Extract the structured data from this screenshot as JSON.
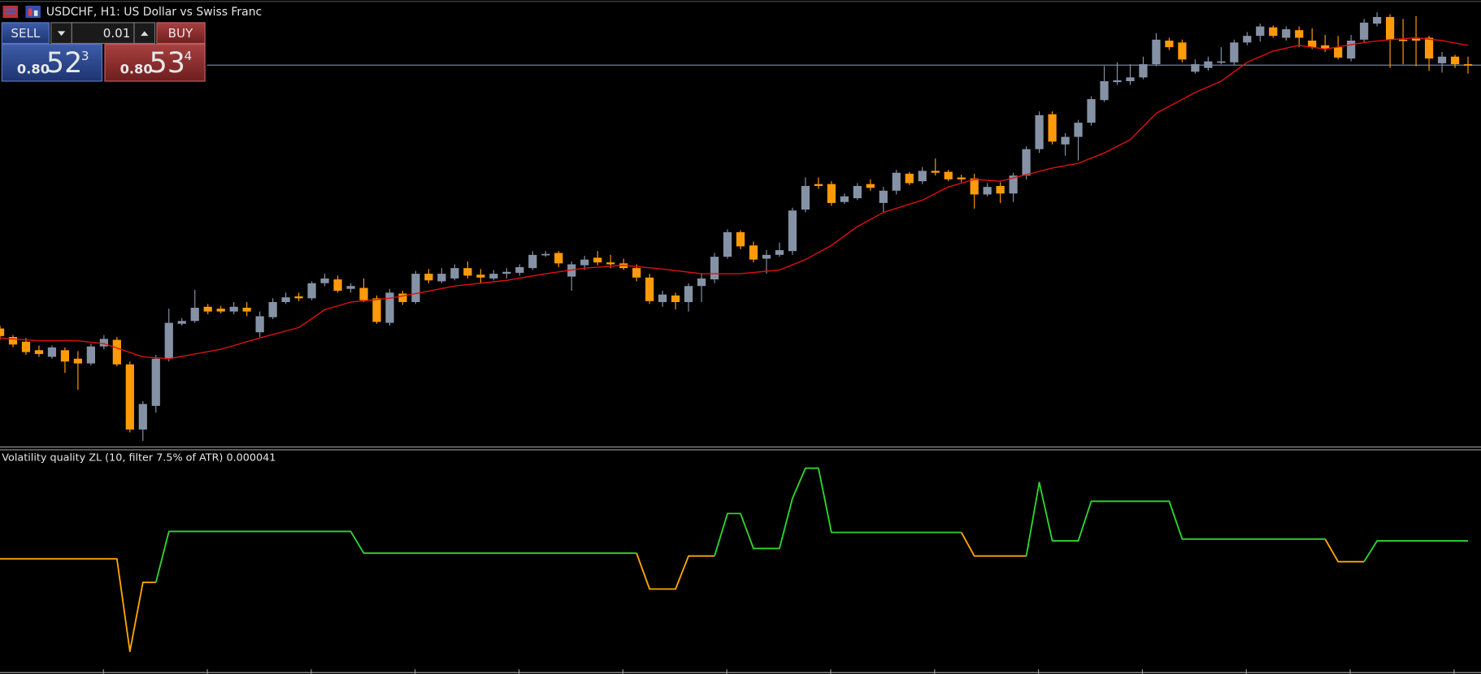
{
  "header": {
    "title": "USDCHF, H1:  US Dollar vs Swiss Franc"
  },
  "trade_panel": {
    "sell_label": "SELL",
    "buy_label": "BUY",
    "lot": "0.01",
    "sell_price": {
      "big": "0.80",
      "main": "52",
      "small": "3"
    },
    "buy_price": {
      "big": "0.80",
      "main": "53",
      "small": "4"
    }
  },
  "chart_data": [
    {
      "type": "candlestick",
      "xlim": [
        0,
        114
      ],
      "ylim": [
        0.79962,
        0.8062
      ],
      "up_color": "#8592a6",
      "down_color": "#ff9a0a",
      "bid_line_color": "#7f8fa8",
      "candles": {
        "open": [
          0.801328,
          0.801202,
          0.801132,
          0.801006,
          0.800908,
          0.801006,
          0.80088,
          0.80081,
          0.801062,
          0.80116,
          0.800796,
          0.79983,
          0.80018,
          0.80088,
          0.801398,
          0.80144,
          0.80165,
          0.801622,
          0.80158,
          0.801636,
          0.801272,
          0.801496,
          0.80172,
          0.801804,
          0.801776,
          0.802,
          0.802056,
          0.801916,
          0.80193,
          0.801776,
          0.801412,
          0.801846,
          0.80172,
          0.80214,
          0.802028,
          0.80207,
          0.802224,
          0.802126,
          0.80207,
          0.80214,
          0.802154,
          0.802224,
          0.80242,
          0.802448,
          0.802098,
          0.802266,
          0.802378,
          0.802308,
          0.802294,
          0.802224,
          0.802084,
          0.80172,
          0.801818,
          0.80172,
          0.801958,
          0.802056,
          0.802392,
          0.802756,
          0.80256,
          0.802364,
          0.80242,
          0.802476,
          0.803092,
          0.80347,
          0.80347,
          0.803204,
          0.80326,
          0.80347,
          0.80319,
          0.803372,
          0.803624,
          0.803512,
          0.803666,
          0.803652,
          0.803568,
          0.803554,
          0.803316,
          0.803442,
          0.80333,
          0.803596,
          0.803988,
          0.804506,
          0.804058,
          0.80417,
          0.80438,
          0.804716,
          0.804982,
          0.804996,
          0.805052,
          0.805248,
          0.805598,
          0.80557,
          0.805136,
          0.805192,
          0.805276,
          0.805276,
          0.80557,
          0.805668,
          0.805794,
          0.80564,
          0.805752,
          0.805598,
          0.805528,
          0.8055,
          0.805332,
          0.805612,
          0.80585,
          0.805948,
          0.805612,
          0.805626,
          0.80564,
          0.805262,
          0.80536,
          0.805248
        ],
        "high": [
          0.80137,
          0.80123,
          0.801188,
          0.801076,
          0.801076,
          0.801048,
          0.800992,
          0.801104,
          0.80123,
          0.801202,
          0.800838,
          0.80025,
          0.800936,
          0.801622,
          0.801482,
          0.801902,
          0.801692,
          0.801664,
          0.80172,
          0.80172,
          0.80158,
          0.801776,
          0.80186,
          0.80186,
          0.802028,
          0.80214,
          0.802112,
          0.802,
          0.80207,
          0.801818,
          0.801916,
          0.801888,
          0.802182,
          0.80221,
          0.802224,
          0.80228,
          0.802322,
          0.80221,
          0.802196,
          0.802224,
          0.80228,
          0.802476,
          0.802476,
          0.802476,
          0.802322,
          0.802406,
          0.802476,
          0.80242,
          0.802364,
          0.80228,
          0.80214,
          0.801888,
          0.80186,
          0.802,
          0.80214,
          0.802448,
          0.802798,
          0.802784,
          0.802616,
          0.80249,
          0.802602,
          0.80312,
          0.803568,
          0.803568,
          0.803512,
          0.80333,
          0.803484,
          0.80354,
          0.803428,
          0.80368,
          0.803652,
          0.803722,
          0.803848,
          0.80368,
          0.80361,
          0.803624,
          0.803484,
          0.803498,
          0.803638,
          0.80403,
          0.804548,
          0.804548,
          0.804226,
          0.804422,
          0.804772,
          0.80522,
          0.805276,
          0.805248,
          0.80536,
          0.80571,
          0.80564,
          0.805612,
          0.805318,
          0.80536,
          0.8055,
          0.805612,
          0.805724,
          0.80585,
          0.805822,
          0.805808,
          0.805808,
          0.80578,
          0.805682,
          0.805668,
          0.805682,
          0.80592,
          0.806018,
          0.80599,
          0.80592,
          0.805962,
          0.805668,
          0.80543,
          0.805388,
          0.80536
        ],
        "low": [
          0.80116,
          0.801048,
          0.800936,
          0.800908,
          0.80088,
          0.80067,
          0.800418,
          0.800782,
          0.80102,
          0.800768,
          0.799788,
          0.799662,
          0.800082,
          0.800838,
          0.80137,
          0.801412,
          0.801538,
          0.801552,
          0.801538,
          0.80151,
          0.801202,
          0.801468,
          0.801692,
          0.801734,
          0.801748,
          0.801958,
          0.80186,
          0.80186,
          0.80172,
          0.801398,
          0.80137,
          0.801678,
          0.801692,
          0.802,
          0.802,
          0.802042,
          0.80207,
          0.802,
          0.802042,
          0.80207,
          0.802112,
          0.802196,
          0.802392,
          0.802238,
          0.801888,
          0.802196,
          0.802266,
          0.802224,
          0.802196,
          0.802028,
          0.801692,
          0.80165,
          0.801608,
          0.80158,
          0.80172,
          0.802,
          0.802364,
          0.802504,
          0.802308,
          0.80214,
          0.802392,
          0.80242,
          0.80305,
          0.8034,
          0.803148,
          0.803176,
          0.803232,
          0.803372,
          0.80305,
          0.803316,
          0.803456,
          0.80347,
          0.803596,
          0.803512,
          0.803498,
          0.803106,
          0.803288,
          0.80319,
          0.803204,
          0.80354,
          0.803932,
          0.804058,
          0.80389,
          0.80382,
          0.804338,
          0.804688,
          0.80494,
          0.80494,
          0.805024,
          0.80522,
          0.805458,
          0.805276,
          0.805108,
          0.80515,
          0.805248,
          0.805234,
          0.805528,
          0.805584,
          0.80564,
          0.805598,
          0.8055,
          0.805472,
          0.80543,
          0.805318,
          0.80529,
          0.80557,
          0.805808,
          0.805192,
          0.805248,
          0.80522,
          0.80515,
          0.805122,
          0.805192,
          0.805108
        ],
        "close": [
          0.801216,
          0.80109,
          0.800978,
          0.80095,
          0.801048,
          0.800838,
          0.80081,
          0.801062,
          0.801174,
          0.800796,
          0.79983,
          0.800208,
          0.80088,
          0.801412,
          0.80144,
          0.801636,
          0.80158,
          0.80158,
          0.80165,
          0.80158,
          0.80151,
          0.80172,
          0.80179,
          0.801776,
          0.802,
          0.80207,
          0.801888,
          0.801958,
          0.801748,
          0.801426,
          0.80186,
          0.80172,
          0.80214,
          0.802042,
          0.80214,
          0.802224,
          0.802112,
          0.802084,
          0.80214,
          0.802168,
          0.802238,
          0.80242,
          0.802434,
          0.802294,
          0.80228,
          0.80235,
          0.802308,
          0.80228,
          0.802224,
          0.802084,
          0.801734,
          0.801832,
          0.80172,
          0.801958,
          0.80207,
          0.802392,
          0.802756,
          0.802546,
          0.80235,
          0.80242,
          0.80249,
          0.803078,
          0.803442,
          0.803442,
          0.80319,
          0.803288,
          0.803442,
          0.803414,
          0.803372,
          0.803638,
          0.803484,
          0.803666,
          0.803638,
          0.80354,
          0.80354,
          0.803316,
          0.803428,
          0.80333,
          0.803596,
          0.803988,
          0.804492,
          0.8041,
          0.80417,
          0.80438,
          0.80473,
          0.804996,
          0.80501,
          0.805052,
          0.805248,
          0.805612,
          0.8055,
          0.805318,
          0.805248,
          0.80529,
          0.80529,
          0.80557,
          0.805668,
          0.805808,
          0.805668,
          0.805766,
          0.80564,
          0.8055,
          0.805472,
          0.805346,
          0.805598,
          0.805864,
          0.805948,
          0.805612,
          0.805598,
          0.805598,
          0.805332,
          0.80536,
          0.805248,
          0.805234
        ]
      },
      "overlay": {
        "type": "line",
        "color": "#e01010",
        "x": [
          0,
          3,
          6,
          8,
          11,
          13,
          17,
          20,
          23,
          25,
          27,
          30,
          32,
          35,
          39,
          42,
          45,
          48,
          51,
          54,
          57,
          60,
          62,
          64,
          66,
          68,
          71,
          73,
          75,
          77,
          79,
          81,
          83,
          85,
          87,
          89,
          92,
          94,
          96,
          98,
          100,
          102,
          105,
          107,
          109,
          111,
          113
        ],
        "values": [
          0.801188,
          0.801146,
          0.801146,
          0.801104,
          0.800908,
          0.80088,
          0.80102,
          0.801188,
          0.801342,
          0.801608,
          0.80172,
          0.801776,
          0.801846,
          0.801958,
          0.802042,
          0.80214,
          0.802224,
          0.802266,
          0.80221,
          0.80214,
          0.80214,
          0.802196,
          0.80235,
          0.80256,
          0.80284,
          0.80305,
          0.803232,
          0.803428,
          0.80354,
          0.803512,
          0.80361,
          0.803708,
          0.803778,
          0.803932,
          0.804128,
          0.80452,
          0.804828,
          0.804996,
          0.805276,
          0.805444,
          0.805528,
          0.805472,
          0.80557,
          0.805612,
          0.80564,
          0.805598,
          0.805528
        ]
      }
    },
    {
      "type": "line",
      "title": "Volatility quality ZL (10, filter 7.5% of ATR) 0.000041",
      "xlim": [
        0,
        114
      ],
      "ylim": [
        -2.85e-05,
        8.85e-05
      ],
      "x": [
        0,
        9,
        10,
        11,
        12,
        13,
        27,
        28,
        49,
        50,
        52,
        53,
        55,
        56,
        57,
        58,
        60,
        61,
        62,
        63,
        64,
        74,
        75,
        79,
        80,
        81,
        83,
        84,
        90,
        91,
        102,
        103,
        105,
        106,
        113
      ],
      "series": [
        {
          "color": "#ffa500",
          "values": [
            3.15e-05,
            3.15e-05,
            -1.75e-05,
            1.9e-05,
            1.9e-05,
            null,
            null,
            null,
            3.45e-05,
            1.55e-05,
            1.55e-05,
            3.3e-05,
            3.3e-05,
            null,
            null,
            null,
            null,
            null,
            null,
            null,
            null,
            4.55e-05,
            3.3e-05,
            3.3e-05,
            null,
            null,
            null,
            null,
            null,
            null,
            4.2e-05,
            3e-05,
            3e-05,
            null,
            null
          ]
        },
        {
          "color": "#2ed52e",
          "values": [
            null,
            null,
            null,
            null,
            1.9e-05,
            4.6e-05,
            4.6e-05,
            3.45e-05,
            3.45e-05,
            null,
            null,
            null,
            3.3e-05,
            5.55e-05,
            5.55e-05,
            3.7e-05,
            3.7e-05,
            6.35e-05,
            7.95e-05,
            7.95e-05,
            4.55e-05,
            4.55e-05,
            null,
            3.3e-05,
            7.2e-05,
            4.1e-05,
            4.1e-05,
            6.2e-05,
            6.2e-05,
            4.2e-05,
            4.2e-05,
            null,
            3e-05,
            4.1e-05,
            4.1e-05
          ]
        }
      ]
    }
  ]
}
